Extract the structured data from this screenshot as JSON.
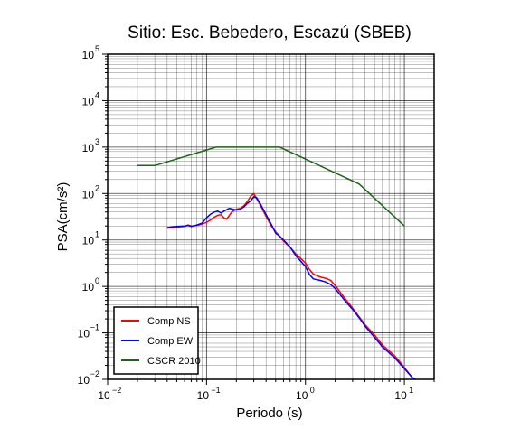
{
  "chart_data": {
    "type": "line",
    "title": "Sitio: Esc. Bebedero, Escazú (SBEB)",
    "xlabel": "Periodo (s)",
    "ylabel": "PSA(cm/s²)",
    "x_scale": "log",
    "y_scale": "log",
    "xlim": [
      0.01,
      20
    ],
    "ylim": [
      0.01,
      100000
    ],
    "grid": true,
    "legend_position": "bottom-left",
    "x_ticks": [
      {
        "value": 0.01,
        "base": "10",
        "exp": "−2"
      },
      {
        "value": 0.1,
        "base": "10",
        "exp": "−1"
      },
      {
        "value": 1,
        "base": "10",
        "exp": "0"
      },
      {
        "value": 10,
        "base": "10",
        "exp": "1"
      }
    ],
    "y_ticks": [
      {
        "value": 0.01,
        "base": "10",
        "exp": "−2"
      },
      {
        "value": 0.1,
        "base": "10",
        "exp": "−1"
      },
      {
        "value": 1,
        "base": "10",
        "exp": "0"
      },
      {
        "value": 10,
        "base": "10",
        "exp": "1"
      },
      {
        "value": 100,
        "base": "10",
        "exp": "2"
      },
      {
        "value": 1000,
        "base": "10",
        "exp": "3"
      },
      {
        "value": 10000,
        "base": "10",
        "exp": "4"
      },
      {
        "value": 100000,
        "base": "10",
        "exp": "5"
      }
    ],
    "series": [
      {
        "name": "Comp NS",
        "color": "#ff0000",
        "points": [
          [
            0.04,
            18
          ],
          [
            0.05,
            19
          ],
          [
            0.06,
            19.5
          ],
          [
            0.065,
            21
          ],
          [
            0.07,
            20
          ],
          [
            0.08,
            20.5
          ],
          [
            0.09,
            22
          ],
          [
            0.1,
            24
          ],
          [
            0.11,
            27
          ],
          [
            0.12,
            31
          ],
          [
            0.13,
            34
          ],
          [
            0.14,
            35
          ],
          [
            0.15,
            30
          ],
          [
            0.16,
            28
          ],
          [
            0.17,
            34
          ],
          [
            0.18,
            40
          ],
          [
            0.2,
            46
          ],
          [
            0.22,
            48
          ],
          [
            0.24,
            55
          ],
          [
            0.26,
            68
          ],
          [
            0.28,
            88
          ],
          [
            0.3,
            100
          ],
          [
            0.32,
            78
          ],
          [
            0.35,
            56
          ],
          [
            0.4,
            32
          ],
          [
            0.45,
            20
          ],
          [
            0.5,
            15
          ],
          [
            0.55,
            12
          ],
          [
            0.6,
            9.5
          ],
          [
            0.7,
            7
          ],
          [
            0.8,
            5
          ],
          [
            1.0,
            3.2
          ],
          [
            1.1,
            2.3
          ],
          [
            1.2,
            1.85
          ],
          [
            1.4,
            1.6
          ],
          [
            1.6,
            1.5
          ],
          [
            1.8,
            1.35
          ],
          [
            2.0,
            1.05
          ],
          [
            2.3,
            0.7
          ],
          [
            2.6,
            0.5
          ],
          [
            3.0,
            0.34
          ],
          [
            3.5,
            0.22
          ],
          [
            4.0,
            0.15
          ],
          [
            5.0,
            0.09
          ],
          [
            6.0,
            0.055
          ],
          [
            8.0,
            0.032
          ],
          [
            10.0,
            0.018
          ],
          [
            12.0,
            0.011
          ],
          [
            13.0,
            0.01
          ]
        ]
      },
      {
        "name": "Comp EW",
        "color": "#0000ff",
        "points": [
          [
            0.04,
            18.5
          ],
          [
            0.05,
            19.5
          ],
          [
            0.06,
            20
          ],
          [
            0.065,
            20.5
          ],
          [
            0.07,
            19.5
          ],
          [
            0.08,
            21
          ],
          [
            0.09,
            23
          ],
          [
            0.1,
            30
          ],
          [
            0.11,
            36
          ],
          [
            0.12,
            40
          ],
          [
            0.13,
            42
          ],
          [
            0.14,
            38
          ],
          [
            0.15,
            42
          ],
          [
            0.17,
            48
          ],
          [
            0.2,
            44
          ],
          [
            0.22,
            46
          ],
          [
            0.24,
            52
          ],
          [
            0.26,
            62
          ],
          [
            0.28,
            70
          ],
          [
            0.3,
            85
          ],
          [
            0.32,
            82
          ],
          [
            0.35,
            60
          ],
          [
            0.4,
            35
          ],
          [
            0.45,
            22
          ],
          [
            0.5,
            14
          ],
          [
            0.55,
            12
          ],
          [
            0.6,
            10
          ],
          [
            0.7,
            7
          ],
          [
            0.8,
            4.6
          ],
          [
            1.0,
            2.7
          ],
          [
            1.1,
            1.8
          ],
          [
            1.2,
            1.45
          ],
          [
            1.4,
            1.35
          ],
          [
            1.6,
            1.25
          ],
          [
            1.8,
            1.1
          ],
          [
            2.0,
            0.9
          ],
          [
            2.3,
            0.62
          ],
          [
            2.6,
            0.45
          ],
          [
            3.0,
            0.32
          ],
          [
            3.5,
            0.21
          ],
          [
            4.0,
            0.14
          ],
          [
            5.0,
            0.08
          ],
          [
            6.0,
            0.05
          ],
          [
            8.0,
            0.029
          ],
          [
            10.0,
            0.017
          ],
          [
            12.0,
            0.011
          ],
          [
            13.0,
            0.01
          ]
        ]
      },
      {
        "name": "CSCR 2010",
        "color": "#1a6614",
        "points": [
          [
            0.02,
            400
          ],
          [
            0.03,
            400
          ],
          [
            0.125,
            1000
          ],
          [
            0.55,
            1000
          ],
          [
            3.5,
            160
          ],
          [
            10.0,
            20
          ]
        ]
      }
    ]
  }
}
